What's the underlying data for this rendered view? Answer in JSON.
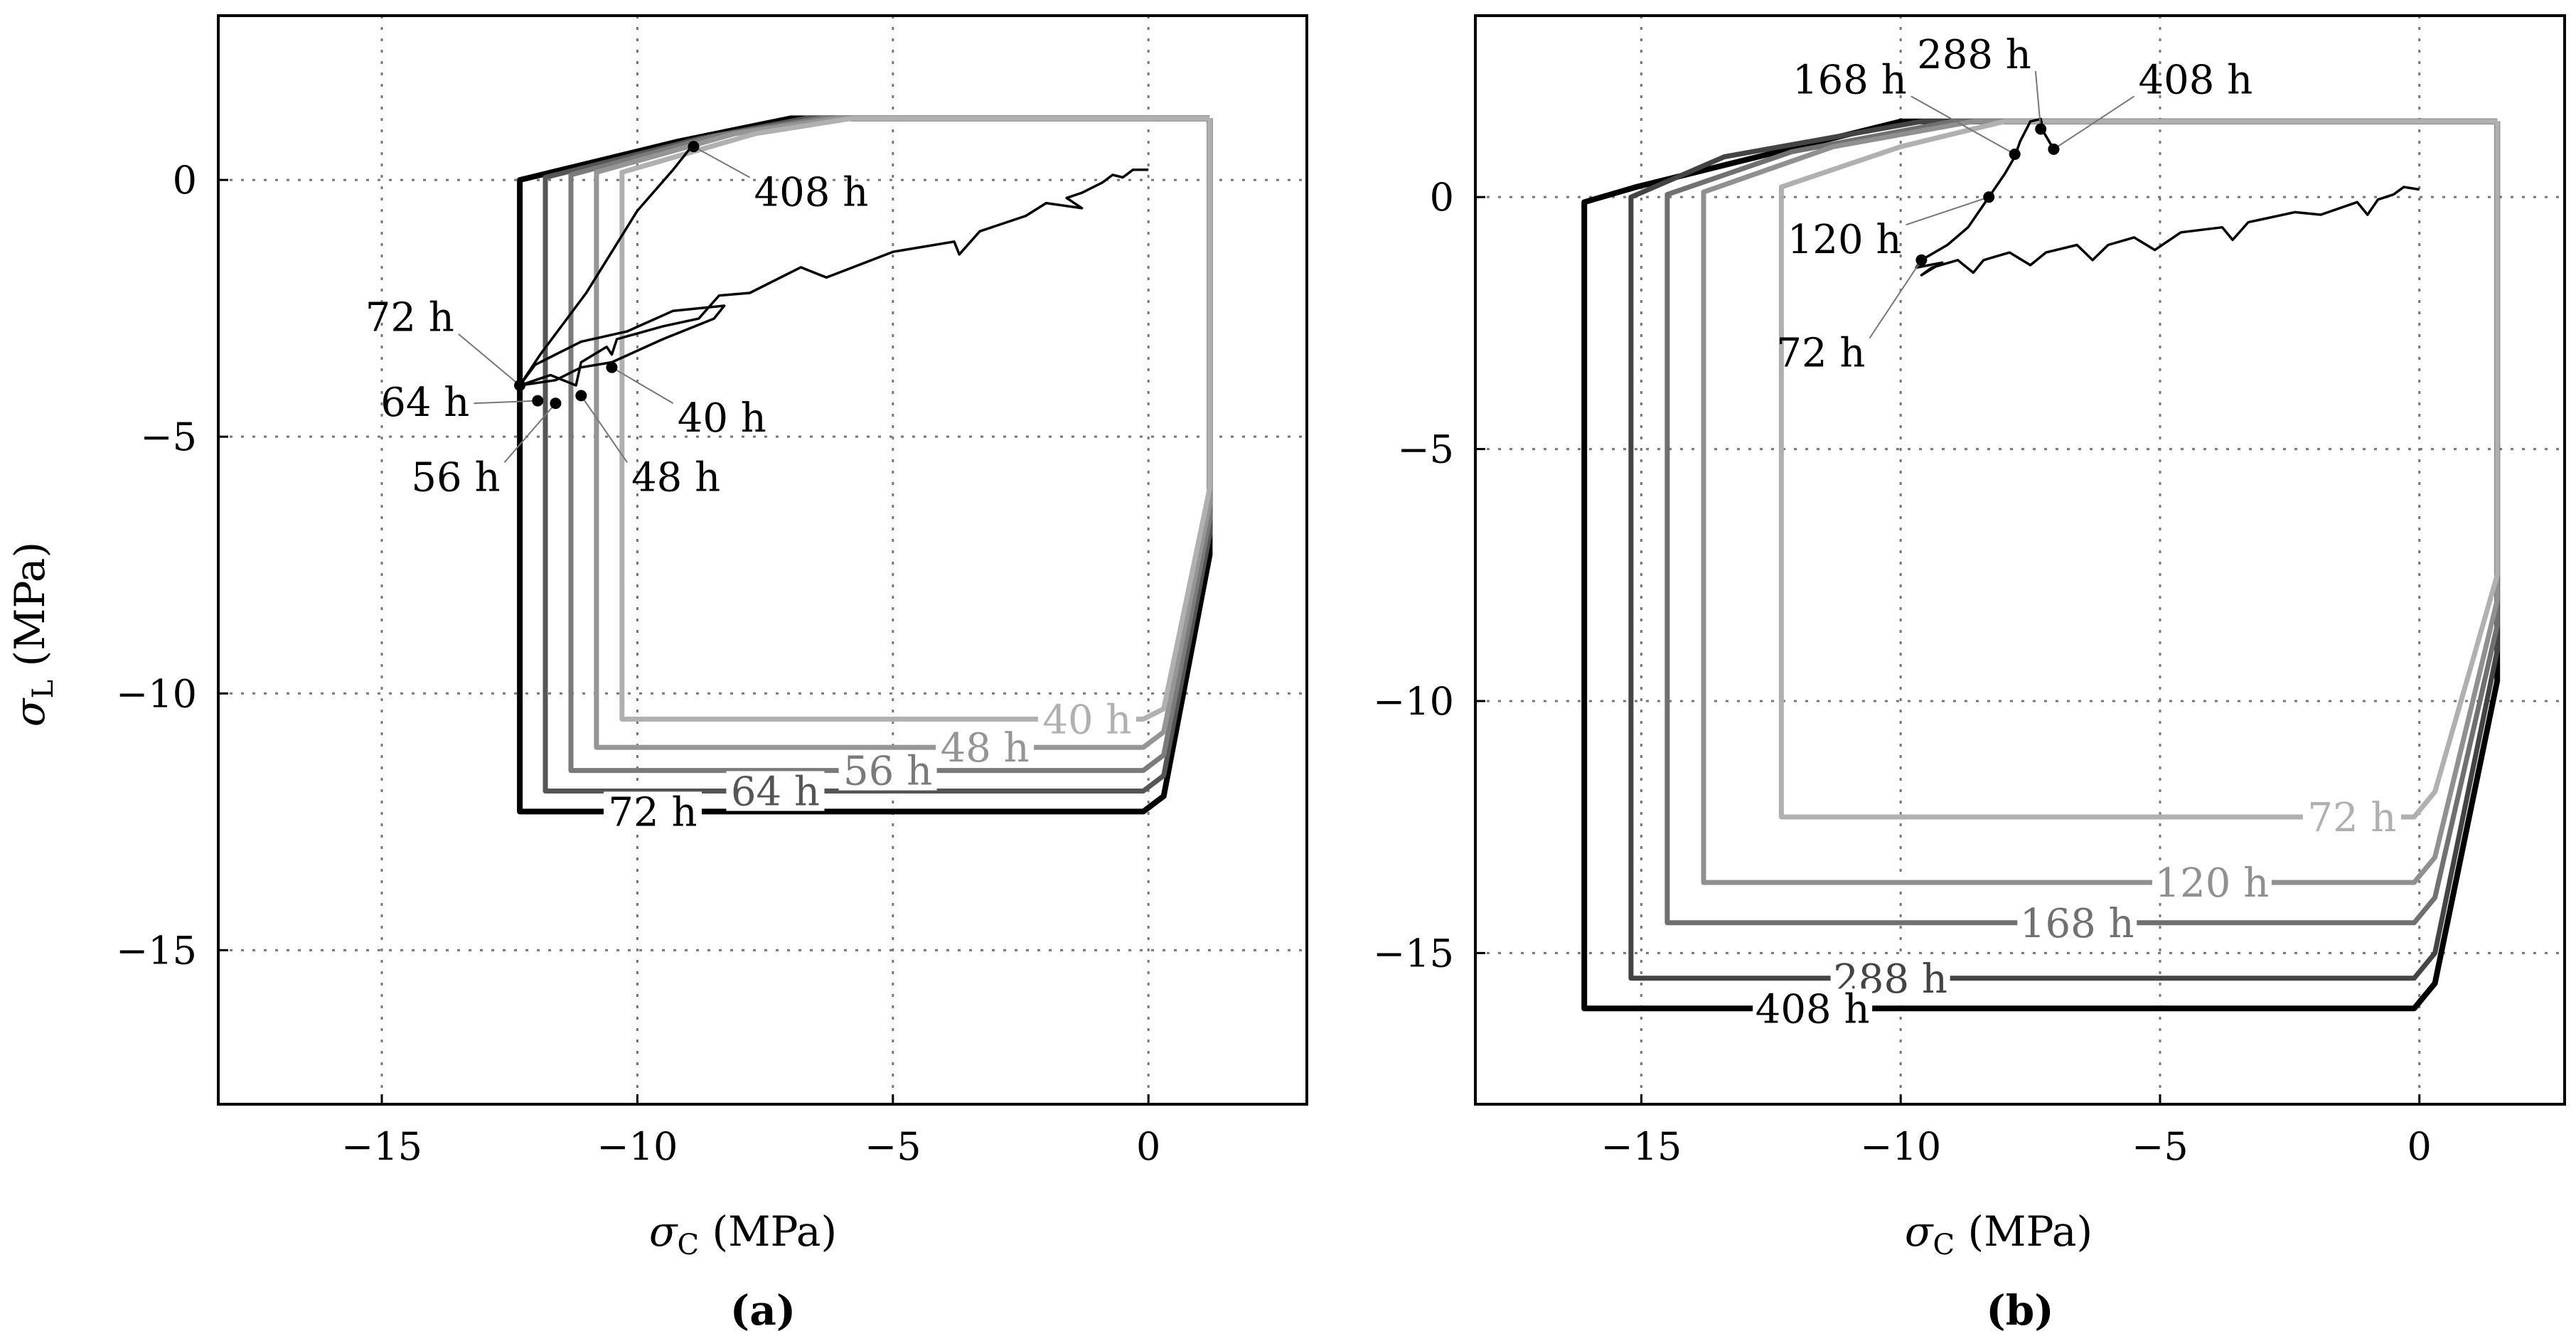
{
  "chart_data": [
    {
      "type": "line",
      "panel": "(a)",
      "xlabel": "σC (MPa)",
      "ylabel": "σL (MPa)",
      "xlim": [
        -18.2,
        3.1
      ],
      "ylim": [
        -18.0,
        3.2
      ],
      "xticks": [
        -15,
        -10,
        -5,
        0
      ],
      "yticks": [
        0,
        -5,
        -10,
        -15
      ],
      "grid": true,
      "envelopes": [
        {
          "label": "40 h",
          "color": "#b0b0b0",
          "width": 7,
          "points": [
            [
              1.2,
              1.2
            ],
            [
              -5.8,
              1.2
            ],
            [
              -7.7,
              0.9
            ],
            [
              -10.3,
              0.15
            ],
            [
              -10.3,
              -10.5
            ],
            [
              -0.1,
              -10.5
            ],
            [
              0.3,
              -10.3
            ],
            [
              1.2,
              -6.0
            ],
            [
              1.2,
              1.2
            ]
          ],
          "lx": -1.2,
          "ly": -10.5
        },
        {
          "label": "48 h",
          "color": "#959595",
          "width": 7,
          "points": [
            [
              1.2,
              1.2
            ],
            [
              -6.1,
              1.2
            ],
            [
              -8.1,
              0.9
            ],
            [
              -10.8,
              0.15
            ],
            [
              -10.8,
              -11.05
            ],
            [
              -0.1,
              -11.05
            ],
            [
              0.3,
              -10.75
            ],
            [
              1.2,
              -6.3
            ],
            [
              1.2,
              1.2
            ]
          ],
          "lx": -3.2,
          "ly": -11.05
        },
        {
          "label": "56 h",
          "color": "#7a7a7a",
          "width": 7,
          "points": [
            [
              1.2,
              1.2
            ],
            [
              -6.4,
              1.2
            ],
            [
              -8.5,
              0.85
            ],
            [
              -11.3,
              0.1
            ],
            [
              -11.3,
              -11.5
            ],
            [
              -0.1,
              -11.5
            ],
            [
              0.3,
              -11.2
            ],
            [
              1.2,
              -6.6
            ],
            [
              1.2,
              1.2
            ]
          ],
          "lx": -5.1,
          "ly": -11.5
        },
        {
          "label": "64 h",
          "color": "#555555",
          "width": 7,
          "points": [
            [
              1.2,
              1.2
            ],
            [
              -6.7,
              1.2
            ],
            [
              -8.8,
              0.8
            ],
            [
              -11.8,
              0.05
            ],
            [
              -11.8,
              -11.9
            ],
            [
              -0.1,
              -11.9
            ],
            [
              0.3,
              -11.6
            ],
            [
              1.2,
              -6.9
            ],
            [
              1.2,
              1.2
            ]
          ],
          "lx": -7.3,
          "ly": -11.9
        },
        {
          "label": "72 h",
          "color": "#000000",
          "width": 8,
          "points": [
            [
              1.2,
              1.2
            ],
            [
              -7.0,
              1.2
            ],
            [
              -9.2,
              0.75
            ],
            [
              -12.3,
              0.0
            ],
            [
              -12.3,
              -12.3
            ],
            [
              -0.1,
              -12.3
            ],
            [
              0.3,
              -12.0
            ],
            [
              1.2,
              -7.3
            ],
            [
              1.2,
              1.2
            ]
          ],
          "lx": -9.7,
          "ly": -12.3
        }
      ],
      "path": [
        [
          0.0,
          0.2
        ],
        [
          -0.3,
          0.2
        ],
        [
          -0.5,
          0.05
        ],
        [
          -0.7,
          0.1
        ],
        [
          -0.9,
          -0.05
        ],
        [
          -1.3,
          -0.25
        ],
        [
          -1.6,
          -0.35
        ],
        [
          -1.3,
          -0.55
        ],
        [
          -2.0,
          -0.45
        ],
        [
          -2.4,
          -0.7
        ],
        [
          -3.3,
          -1.0
        ],
        [
          -3.7,
          -1.45
        ],
        [
          -3.8,
          -1.2
        ],
        [
          -5.0,
          -1.4
        ],
        [
          -6.3,
          -1.9
        ],
        [
          -6.8,
          -1.7
        ],
        [
          -7.8,
          -2.2
        ],
        [
          -8.4,
          -2.25
        ],
        [
          -8.8,
          -2.7
        ],
        [
          -9.5,
          -2.85
        ],
        [
          -10.4,
          -3.1
        ],
        [
          -10.5,
          -3.4
        ],
        [
          -10.6,
          -3.25
        ],
        [
          -11.1,
          -3.55
        ],
        [
          -11.2,
          -4.0
        ],
        [
          -11.7,
          -3.8
        ],
        [
          -12.3,
          -4.0
        ],
        [
          -11.6,
          -3.9
        ],
        [
          -11.1,
          -3.65
        ],
        [
          -10.5,
          -3.55
        ],
        [
          -9.5,
          -3.1
        ],
        [
          -8.5,
          -2.7
        ],
        [
          -8.3,
          -2.45
        ],
        [
          -9.3,
          -2.55
        ],
        [
          -10.2,
          -2.95
        ],
        [
          -11.1,
          -3.15
        ],
        [
          -12.0,
          -3.6
        ],
        [
          -12.3,
          -4.0
        ],
        [
          -11.9,
          -3.4
        ],
        [
          -11.0,
          -2.2
        ],
        [
          -10.0,
          -0.6
        ],
        [
          -9.3,
          0.2
        ],
        [
          -8.9,
          0.7
        ]
      ],
      "points": [
        {
          "label": "40 h",
          "x": -10.5,
          "y": -3.65,
          "lx": -9.3,
          "ly": -4.35
        },
        {
          "label": "48 h",
          "x": -11.1,
          "y": -4.2,
          "lx": -10.2,
          "ly": -5.5
        },
        {
          "label": "56 h",
          "x": -11.6,
          "y": -4.35,
          "lx": -12.6,
          "ly": -5.5
        },
        {
          "label": "64 h",
          "x": -11.95,
          "y": -4.3,
          "lx": -13.2,
          "ly": -4.35
        },
        {
          "label": "72 h",
          "x": -12.3,
          "y": -4.0,
          "lx": -13.5,
          "ly": -3.0
        },
        {
          "label": "408 h",
          "x": -8.9,
          "y": 0.65,
          "lx": -7.8,
          "ly": 0.05
        }
      ]
    },
    {
      "type": "line",
      "panel": "(b)",
      "xlabel": "σC (MPa)",
      "ylabel": "",
      "xlim": [
        -18.2,
        2.8
      ],
      "ylim": [
        -18.0,
        3.6
      ],
      "xticks": [
        -15,
        -10,
        -5,
        0
      ],
      "yticks": [
        0,
        -5,
        -10,
        -15
      ],
      "grid": true,
      "envelopes": [
        {
          "label": "72 h",
          "color": "#b0b0b0",
          "width": 7,
          "points": [
            [
              1.5,
              1.5
            ],
            [
              -8.0,
              1.5
            ],
            [
              -10.0,
              1.0
            ],
            [
              -12.3,
              0.2
            ],
            [
              -12.3,
              -12.3
            ],
            [
              -0.1,
              -12.3
            ],
            [
              0.3,
              -11.8
            ],
            [
              1.5,
              -7.5
            ],
            [
              1.5,
              1.5
            ]
          ],
          "lx": -1.3,
          "ly": -12.3
        },
        {
          "label": "120 h",
          "color": "#909090",
          "width": 7,
          "points": [
            [
              1.5,
              1.5
            ],
            [
              -8.6,
              1.5
            ],
            [
              -11.3,
              1.0
            ],
            [
              -13.8,
              0.1
            ],
            [
              -13.8,
              -13.6
            ],
            [
              -0.1,
              -13.6
            ],
            [
              0.3,
              -13.1
            ],
            [
              1.5,
              -8.0
            ],
            [
              1.5,
              1.5
            ]
          ],
          "lx": -4.0,
          "ly": -13.6
        },
        {
          "label": "168 h",
          "color": "#707070",
          "width": 7,
          "points": [
            [
              1.5,
              1.5
            ],
            [
              -9.0,
              1.5
            ],
            [
              -12.1,
              0.9
            ],
            [
              -14.5,
              0.05
            ],
            [
              -14.5,
              -14.4
            ],
            [
              -0.1,
              -14.4
            ],
            [
              0.3,
              -13.9
            ],
            [
              1.5,
              -8.5
            ],
            [
              1.5,
              1.5
            ]
          ],
          "lx": -6.6,
          "ly": -14.4
        },
        {
          "label": "288 h",
          "color": "#444444",
          "width": 7,
          "points": [
            [
              1.5,
              1.5
            ],
            [
              -9.6,
              1.5
            ],
            [
              -13.4,
              0.8
            ],
            [
              -15.2,
              0.0
            ],
            [
              -15.2,
              -15.5
            ],
            [
              -0.1,
              -15.5
            ],
            [
              0.3,
              -15.0
            ],
            [
              1.5,
              -9.0
            ],
            [
              1.5,
              1.5
            ]
          ],
          "lx": -10.2,
          "ly": -15.5
        },
        {
          "label": "408 h",
          "color": "#000000",
          "width": 8,
          "points": [
            [
              1.5,
              1.5
            ],
            [
              -10.0,
              1.5
            ],
            [
              -15.1,
              0.2
            ],
            [
              -16.1,
              -0.1
            ],
            [
              -16.1,
              -16.1
            ],
            [
              -0.1,
              -16.1
            ],
            [
              0.3,
              -15.6
            ],
            [
              1.5,
              -9.6
            ],
            [
              1.5,
              1.5
            ]
          ],
          "lx": -11.7,
          "ly": -16.1
        }
      ],
      "path": [
        [
          0.0,
          0.15
        ],
        [
          -0.3,
          0.2
        ],
        [
          -0.5,
          0.05
        ],
        [
          -0.8,
          -0.05
        ],
        [
          -1.0,
          -0.35
        ],
        [
          -1.2,
          -0.1
        ],
        [
          -1.9,
          -0.35
        ],
        [
          -2.4,
          -0.3
        ],
        [
          -3.3,
          -0.5
        ],
        [
          -3.6,
          -0.85
        ],
        [
          -3.8,
          -0.6
        ],
        [
          -4.6,
          -0.7
        ],
        [
          -5.1,
          -1.05
        ],
        [
          -5.5,
          -0.8
        ],
        [
          -6.0,
          -0.95
        ],
        [
          -6.3,
          -1.25
        ],
        [
          -6.6,
          -0.95
        ],
        [
          -7.2,
          -1.1
        ],
        [
          -7.5,
          -1.35
        ],
        [
          -7.9,
          -1.1
        ],
        [
          -8.4,
          -1.25
        ],
        [
          -8.6,
          -1.5
        ],
        [
          -8.9,
          -1.25
        ],
        [
          -9.4,
          -1.4
        ],
        [
          -9.6,
          -1.55
        ],
        [
          -9.2,
          -1.3
        ],
        [
          -9.7,
          -1.4
        ],
        [
          -9.6,
          -1.25
        ],
        [
          -9.1,
          -0.95
        ],
        [
          -8.7,
          -0.6
        ],
        [
          -8.3,
          0.0
        ],
        [
          -8.0,
          0.45
        ],
        [
          -7.8,
          0.8
        ],
        [
          -7.7,
          1.1
        ],
        [
          -7.5,
          1.5
        ],
        [
          -7.3,
          1.55
        ],
        [
          -7.25,
          1.3
        ],
        [
          -7.05,
          0.95
        ]
      ],
      "points": [
        {
          "label": "72 h",
          "x": -9.6,
          "y": -1.25,
          "lx": -10.6,
          "ly": -2.8
        },
        {
          "label": "120 h",
          "x": -8.3,
          "y": 0.0,
          "lx": -9.9,
          "ly": -0.55
        },
        {
          "label": "168 h",
          "x": -7.8,
          "y": 0.85,
          "lx": -9.8,
          "ly": 2.0
        },
        {
          "label": "288 h",
          "x": -7.3,
          "y": 1.35,
          "lx": -7.4,
          "ly": 2.5
        },
        {
          "label": "408 h",
          "x": -7.05,
          "y": 0.95,
          "lx": -5.5,
          "ly": 2.0
        }
      ]
    }
  ]
}
